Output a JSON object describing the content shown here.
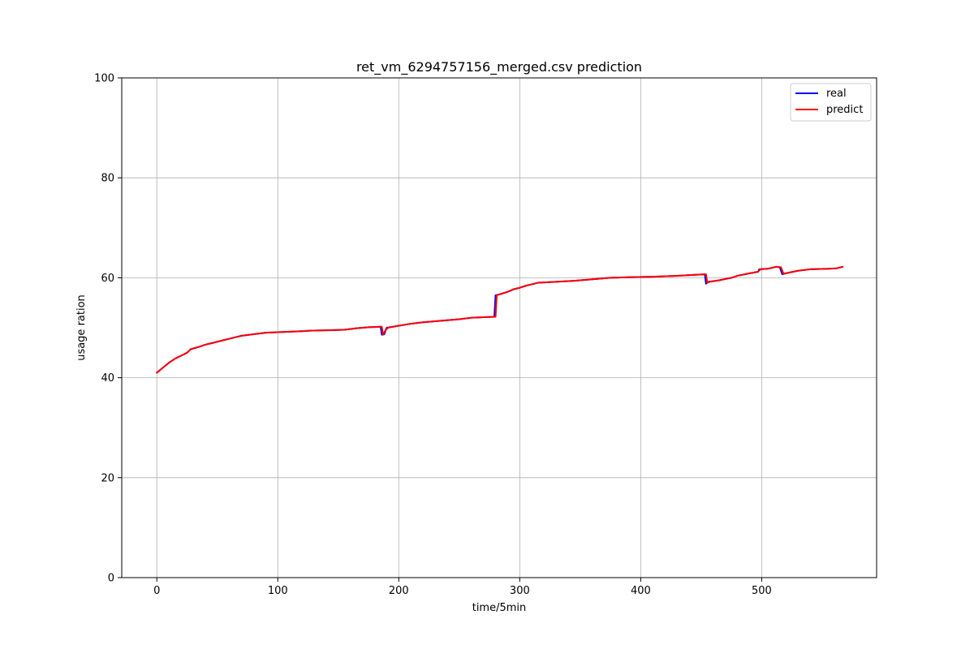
{
  "chart_data": {
    "type": "line",
    "title": "ret_vm_6294757156_merged.csv prediction",
    "xlabel": "time/5min",
    "ylabel": "usage ration",
    "xlim": [
      -29,
      595
    ],
    "ylim": [
      0,
      100
    ],
    "xticks": [
      0,
      100,
      200,
      300,
      400,
      500
    ],
    "yticks": [
      0,
      20,
      40,
      60,
      80,
      100
    ],
    "grid": true,
    "legend_position": "top-right",
    "series": [
      {
        "name": "real",
        "color": "#0000ff",
        "points": [
          [
            0,
            41.0
          ],
          [
            5,
            42.0
          ],
          [
            10,
            43.0
          ],
          [
            15,
            43.8
          ],
          [
            20,
            44.4
          ],
          [
            25,
            45.0
          ],
          [
            28,
            45.7
          ],
          [
            35,
            46.2
          ],
          [
            40,
            46.6
          ],
          [
            45,
            46.9
          ],
          [
            50,
            47.2
          ],
          [
            55,
            47.5
          ],
          [
            60,
            47.8
          ],
          [
            65,
            48.1
          ],
          [
            70,
            48.4
          ],
          [
            80,
            48.7
          ],
          [
            90,
            49.0
          ],
          [
            100,
            49.1
          ],
          [
            110,
            49.2
          ],
          [
            120,
            49.3
          ],
          [
            125,
            49.4
          ],
          [
            140,
            49.5
          ],
          [
            155,
            49.6
          ],
          [
            165,
            49.9
          ],
          [
            175,
            50.1
          ],
          [
            185,
            50.2
          ],
          [
            186,
            48.6
          ],
          [
            188,
            48.7
          ],
          [
            190,
            50.0
          ],
          [
            200,
            50.4
          ],
          [
            210,
            50.8
          ],
          [
            220,
            51.1
          ],
          [
            230,
            51.3
          ],
          [
            240,
            51.5
          ],
          [
            250,
            51.7
          ],
          [
            260,
            52.0
          ],
          [
            270,
            52.1
          ],
          [
            279,
            52.2
          ],
          [
            280,
            56.5
          ],
          [
            285,
            56.8
          ],
          [
            290,
            57.2
          ],
          [
            295,
            57.7
          ],
          [
            300,
            58.0
          ],
          [
            305,
            58.4
          ],
          [
            310,
            58.7
          ],
          [
            315,
            59.0
          ],
          [
            330,
            59.2
          ],
          [
            345,
            59.4
          ],
          [
            360,
            59.7
          ],
          [
            375,
            60.0
          ],
          [
            390,
            60.1
          ],
          [
            410,
            60.2
          ],
          [
            430,
            60.4
          ],
          [
            445,
            60.6
          ],
          [
            453,
            60.7
          ],
          [
            454,
            58.8
          ],
          [
            456,
            59.2
          ],
          [
            465,
            59.5
          ],
          [
            475,
            60.0
          ],
          [
            480,
            60.4
          ],
          [
            490,
            60.9
          ],
          [
            497,
            61.2
          ],
          [
            498,
            61.7
          ],
          [
            505,
            61.8
          ],
          [
            512,
            62.2
          ],
          [
            515,
            62.1
          ],
          [
            517,
            60.7
          ],
          [
            522,
            61.0
          ],
          [
            530,
            61.4
          ],
          [
            540,
            61.7
          ],
          [
            555,
            61.8
          ],
          [
            562,
            61.9
          ],
          [
            567,
            62.2
          ]
        ]
      },
      {
        "name": "predict",
        "color": "#ff0000",
        "points": [
          [
            0,
            41.0
          ],
          [
            5,
            42.0
          ],
          [
            10,
            43.0
          ],
          [
            15,
            43.8
          ],
          [
            20,
            44.4
          ],
          [
            25,
            45.0
          ],
          [
            28,
            45.7
          ],
          [
            35,
            46.2
          ],
          [
            40,
            46.6
          ],
          [
            45,
            46.9
          ],
          [
            50,
            47.2
          ],
          [
            55,
            47.5
          ],
          [
            60,
            47.8
          ],
          [
            65,
            48.1
          ],
          [
            70,
            48.4
          ],
          [
            80,
            48.7
          ],
          [
            90,
            49.0
          ],
          [
            100,
            49.1
          ],
          [
            110,
            49.2
          ],
          [
            120,
            49.3
          ],
          [
            125,
            49.4
          ],
          [
            140,
            49.5
          ],
          [
            155,
            49.6
          ],
          [
            165,
            49.9
          ],
          [
            175,
            50.1
          ],
          [
            186,
            50.2
          ],
          [
            187,
            48.6
          ],
          [
            189,
            49.5
          ],
          [
            191,
            50.0
          ],
          [
            200,
            50.4
          ],
          [
            210,
            50.8
          ],
          [
            220,
            51.1
          ],
          [
            230,
            51.3
          ],
          [
            240,
            51.5
          ],
          [
            250,
            51.7
          ],
          [
            260,
            52.0
          ],
          [
            270,
            52.1
          ],
          [
            280,
            52.2
          ],
          [
            281,
            56.5
          ],
          [
            285,
            56.8
          ],
          [
            290,
            57.2
          ],
          [
            295,
            57.7
          ],
          [
            300,
            58.0
          ],
          [
            305,
            58.4
          ],
          [
            310,
            58.7
          ],
          [
            315,
            59.0
          ],
          [
            330,
            59.2
          ],
          [
            345,
            59.4
          ],
          [
            360,
            59.7
          ],
          [
            375,
            60.0
          ],
          [
            390,
            60.1
          ],
          [
            410,
            60.2
          ],
          [
            430,
            60.4
          ],
          [
            445,
            60.6
          ],
          [
            454,
            60.7
          ],
          [
            455,
            59.0
          ],
          [
            457,
            59.2
          ],
          [
            465,
            59.5
          ],
          [
            475,
            60.0
          ],
          [
            480,
            60.4
          ],
          [
            490,
            60.9
          ],
          [
            497,
            61.2
          ],
          [
            499,
            61.7
          ],
          [
            505,
            61.8
          ],
          [
            512,
            62.2
          ],
          [
            516,
            62.1
          ],
          [
            518,
            60.8
          ],
          [
            522,
            61.0
          ],
          [
            530,
            61.4
          ],
          [
            540,
            61.7
          ],
          [
            555,
            61.8
          ],
          [
            562,
            61.9
          ],
          [
            567,
            62.2
          ]
        ]
      }
    ]
  }
}
